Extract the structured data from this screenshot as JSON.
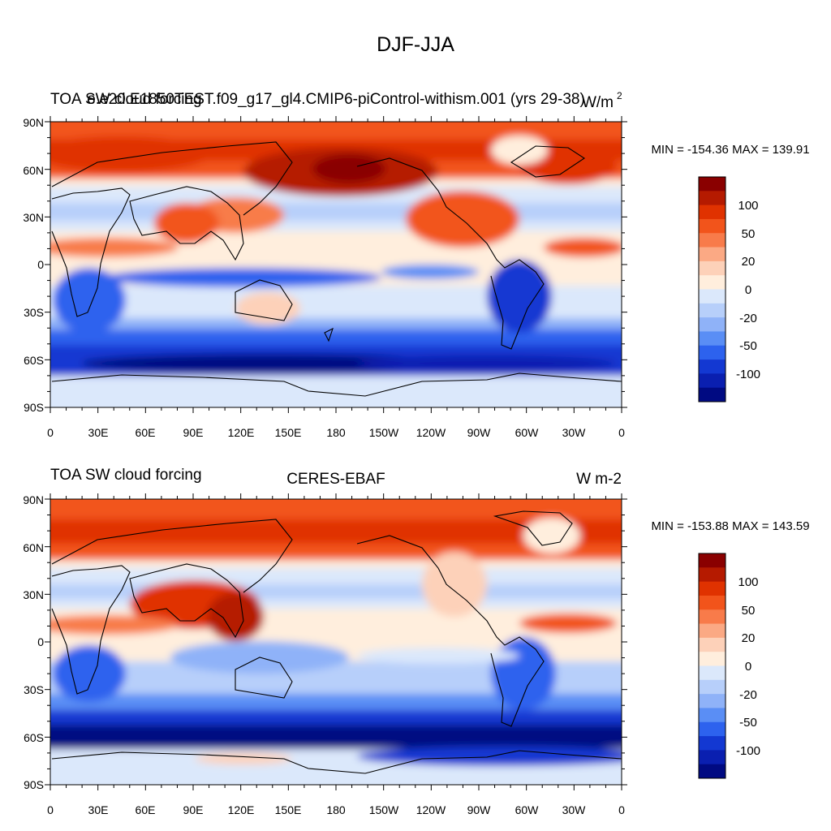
{
  "figure": {
    "title": "DJF-JJA"
  },
  "chart_data": [
    {
      "type": "heatmap",
      "left_title": "TOA SW cloud forcing",
      "center_title": "e.e20.E1850TEST.f09_g17_gl4.CMIP6-piControl-withism.001 (yrs 29-38)",
      "units_text": "W/m",
      "units_exponent": "2",
      "stats": "MIN = -154.36 MAX = 139.91",
      "min": -154.36,
      "max": 139.91,
      "ylabels": [
        "90N",
        "60N",
        "30N",
        "0",
        "30S",
        "60S",
        "90S"
      ],
      "xlabels": [
        "0",
        "30E",
        "60E",
        "90E",
        "120E",
        "150E",
        "180",
        "150W",
        "120W",
        "90W",
        "60W",
        "30W",
        "0"
      ],
      "xlim": [
        0,
        360
      ],
      "ylim": [
        -90,
        90
      ],
      "colorbar": {
        "labels": [
          "100",
          "50",
          "20",
          "0",
          "-20",
          "-50",
          "-100"
        ]
      }
    },
    {
      "type": "heatmap",
      "left_title": "TOA SW cloud forcing",
      "center_title": "CERES-EBAF",
      "units_text": "W m-2",
      "units_exponent": "",
      "stats": "MIN = -153.88 MAX = 143.59",
      "min": -153.88,
      "max": 143.59,
      "ylabels": [
        "90N",
        "60N",
        "30N",
        "0",
        "30S",
        "60S",
        "90S"
      ],
      "xlabels": [
        "0",
        "30E",
        "60E",
        "90E",
        "120E",
        "150E",
        "180",
        "150W",
        "120W",
        "90W",
        "60W",
        "30W",
        "0"
      ],
      "xlim": [
        0,
        360
      ],
      "ylim": [
        -90,
        90
      ],
      "colorbar": {
        "labels": [
          "100",
          "50",
          "20",
          "0",
          "-20",
          "-50",
          "-100"
        ]
      }
    }
  ],
  "colors": {
    "levels": [
      "#8a0000",
      "#b51a00",
      "#e03200",
      "#f2541b",
      "#f87b4a",
      "#fba984",
      "#fdd1b9",
      "#ffeedd",
      "#dbe8fb",
      "#b7cffa",
      "#8fb2f8",
      "#5a8ef5",
      "#2d62ee",
      "#1338d2",
      "#0a1fb0",
      "#000a82"
    ]
  }
}
